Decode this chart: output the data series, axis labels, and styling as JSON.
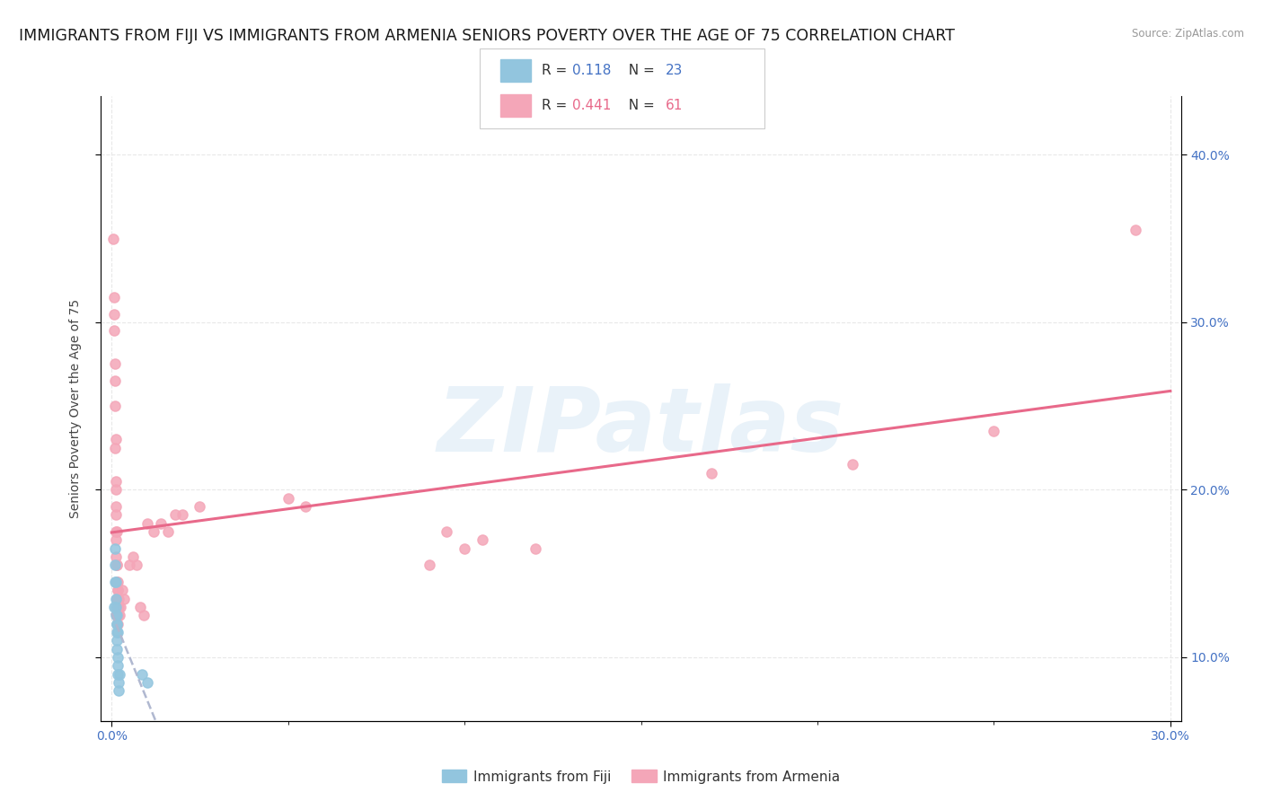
{
  "title": "IMMIGRANTS FROM FIJI VS IMMIGRANTS FROM ARMENIA SENIORS POVERTY OVER THE AGE OF 75 CORRELATION CHART",
  "source": "Source: ZipAtlas.com",
  "ylabel": "Seniors Poverty Over the Age of 75",
  "watermark": "ZIPatlas",
  "legend_fiji_R": "0.118",
  "legend_fiji_N": "23",
  "legend_armenia_R": "0.441",
  "legend_armenia_N": "61",
  "fiji_color": "#92c5de",
  "armenia_color": "#f4a6b8",
  "armenia_line_color": "#e8698a",
  "fiji_line_color": "#b0b8d0",
  "background_color": "#ffffff",
  "fiji_points": [
    [
      0.0008,
      0.13
    ],
    [
      0.001,
      0.145
    ],
    [
      0.001,
      0.155
    ],
    [
      0.001,
      0.165
    ],
    [
      0.0012,
      0.135
    ],
    [
      0.0012,
      0.145
    ],
    [
      0.0012,
      0.13
    ],
    [
      0.0012,
      0.125
    ],
    [
      0.0014,
      0.125
    ],
    [
      0.0014,
      0.12
    ],
    [
      0.0014,
      0.115
    ],
    [
      0.0014,
      0.11
    ],
    [
      0.0015,
      0.12
    ],
    [
      0.0015,
      0.105
    ],
    [
      0.0016,
      0.115
    ],
    [
      0.0016,
      0.1
    ],
    [
      0.0018,
      0.095
    ],
    [
      0.0018,
      0.09
    ],
    [
      0.002,
      0.085
    ],
    [
      0.002,
      0.08
    ],
    [
      0.0022,
      0.09
    ],
    [
      0.0085,
      0.09
    ],
    [
      0.01,
      0.085
    ]
  ],
  "armenia_points": [
    [
      0.0005,
      0.35
    ],
    [
      0.0006,
      0.315
    ],
    [
      0.0008,
      0.305
    ],
    [
      0.0008,
      0.295
    ],
    [
      0.0009,
      0.265
    ],
    [
      0.001,
      0.275
    ],
    [
      0.001,
      0.25
    ],
    [
      0.001,
      0.225
    ],
    [
      0.0011,
      0.23
    ],
    [
      0.0011,
      0.205
    ],
    [
      0.0012,
      0.2
    ],
    [
      0.0012,
      0.19
    ],
    [
      0.0012,
      0.175
    ],
    [
      0.0013,
      0.185
    ],
    [
      0.0013,
      0.17
    ],
    [
      0.0013,
      0.16
    ],
    [
      0.0014,
      0.175
    ],
    [
      0.0014,
      0.155
    ],
    [
      0.0014,
      0.145
    ],
    [
      0.0015,
      0.155
    ],
    [
      0.0015,
      0.145
    ],
    [
      0.0015,
      0.135
    ],
    [
      0.0016,
      0.145
    ],
    [
      0.0016,
      0.135
    ],
    [
      0.0016,
      0.125
    ],
    [
      0.0017,
      0.14
    ],
    [
      0.0017,
      0.13
    ],
    [
      0.0017,
      0.12
    ],
    [
      0.0018,
      0.14
    ],
    [
      0.0018,
      0.125
    ],
    [
      0.0019,
      0.135
    ],
    [
      0.002,
      0.13
    ],
    [
      0.0022,
      0.125
    ],
    [
      0.0025,
      0.13
    ],
    [
      0.003,
      0.14
    ],
    [
      0.0035,
      0.135
    ],
    [
      0.005,
      0.155
    ],
    [
      0.006,
      0.16
    ],
    [
      0.007,
      0.155
    ],
    [
      0.008,
      0.13
    ],
    [
      0.009,
      0.125
    ],
    [
      0.01,
      0.18
    ],
    [
      0.012,
      0.175
    ],
    [
      0.014,
      0.18
    ],
    [
      0.016,
      0.175
    ],
    [
      0.018,
      0.185
    ],
    [
      0.02,
      0.185
    ],
    [
      0.025,
      0.19
    ],
    [
      0.05,
      0.195
    ],
    [
      0.055,
      0.19
    ],
    [
      0.09,
      0.155
    ],
    [
      0.095,
      0.175
    ],
    [
      0.1,
      0.165
    ],
    [
      0.105,
      0.17
    ],
    [
      0.12,
      0.165
    ],
    [
      0.17,
      0.21
    ],
    [
      0.21,
      0.215
    ],
    [
      0.25,
      0.235
    ],
    [
      0.29,
      0.355
    ]
  ],
  "xlim": [
    -0.003,
    0.303
  ],
  "ylim": [
    0.062,
    0.435
  ],
  "yticks": [
    0.1,
    0.2,
    0.3,
    0.4
  ],
  "grid_color": "#e8e8e8",
  "title_fontsize": 12.5,
  "axis_label_fontsize": 10,
  "tick_fontsize": 10,
  "tick_color": "#4472c4"
}
